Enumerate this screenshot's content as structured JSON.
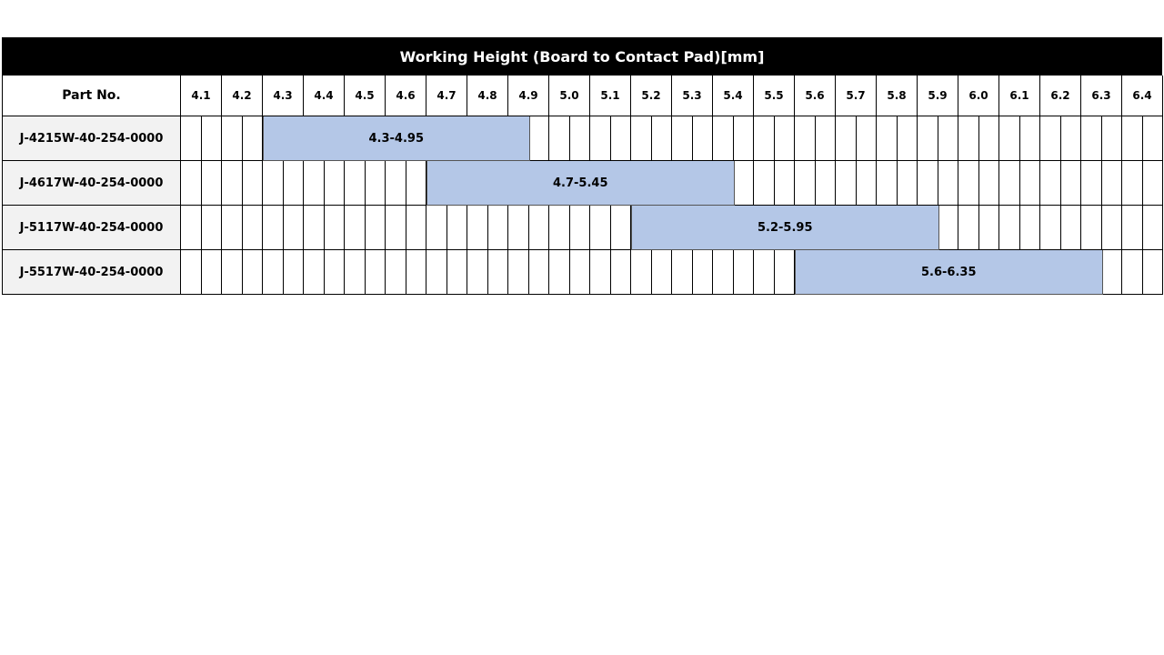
{
  "title": "Working Height (Board to Contact Pad)[mm]",
  "part_header": "Part No.",
  "columns": [
    "4.1",
    "4.2",
    "4.3",
    "4.4",
    "4.5",
    "4.6",
    "4.7",
    "4.8",
    "4.9",
    "5.0",
    "5.1",
    "5.2",
    "5.3",
    "5.4",
    "5.5",
    "5.6",
    "5.7",
    "5.8",
    "5.9",
    "6.0",
    "6.1",
    "6.2",
    "6.3",
    "6.4"
  ],
  "bar_color": "#b4c7e7",
  "rows": [
    {
      "part": "J-4215W-40-254-0000",
      "range_label": "4.3-4.95",
      "min": 4.3,
      "max": 4.95
    },
    {
      "part": "J-4617W-40-254-0000",
      "range_label": "4.7-5.45",
      "min": 4.7,
      "max": 5.45
    },
    {
      "part": "J-5117W-40-254-0000",
      "range_label": "5.2-5.95",
      "min": 5.2,
      "max": 5.95
    },
    {
      "part": "J-5517W-40-254-0000",
      "range_label": "5.6-6.35",
      "min": 5.6,
      "max": 6.35
    }
  ]
}
